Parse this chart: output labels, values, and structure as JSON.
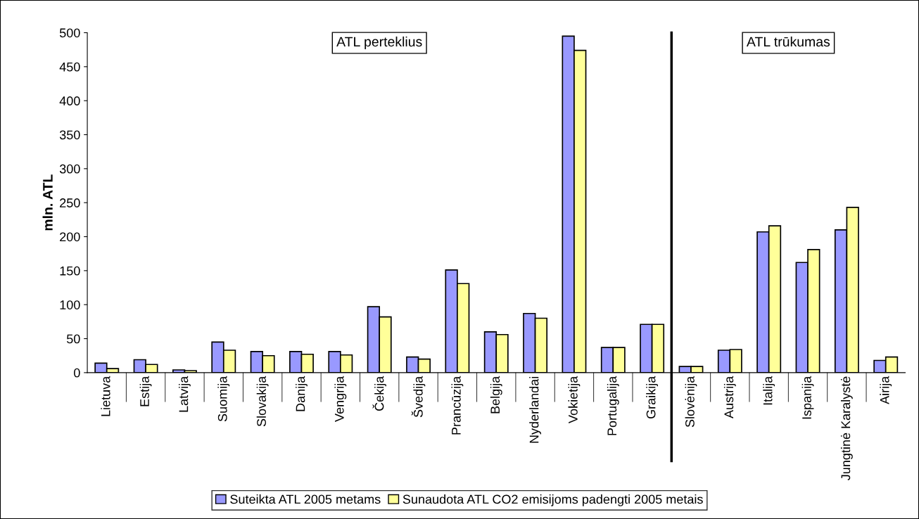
{
  "chart_data": {
    "type": "bar",
    "ylabel": "mln. ATL",
    "categories": [
      "Lietuva",
      "Estija",
      "Latvija",
      "Suomija",
      "Slovakija",
      "Danija",
      "Vengrija",
      "Čekija",
      "Švedija",
      "Prancūzija",
      "Belgija",
      "Nyderlandai",
      "Vokietija",
      "Portugalija",
      "Graikija",
      "Slovėnija",
      "Austrija",
      "Italija",
      "Ispanija",
      "Jungtinė Karalystė",
      "Airija"
    ],
    "series": [
      {
        "name": "Suteikta ATL 2005 metams",
        "color": "#9999ff",
        "values": [
          14,
          19,
          4,
          45,
          31,
          31,
          31,
          97,
          23,
          151,
          60,
          87,
          495,
          37,
          71,
          9,
          33,
          207,
          162,
          210,
          18
        ]
      },
      {
        "name": "Sunaudota ATL CO2 emisijoms padengti 2005 metais",
        "color": "#ffff99",
        "values": [
          6,
          12,
          3,
          33,
          25,
          27,
          26,
          82,
          20,
          131,
          56,
          80,
          474,
          37,
          71,
          9,
          34,
          216,
          181,
          243,
          23
        ]
      }
    ],
    "ylim": [
      0,
      500
    ],
    "yticks": [
      0,
      50,
      100,
      150,
      200,
      250,
      300,
      350,
      400,
      450,
      500
    ],
    "annotations": [
      "ATL perteklius",
      "ATL trūkumas"
    ],
    "legend": "bottom",
    "grid": false
  }
}
